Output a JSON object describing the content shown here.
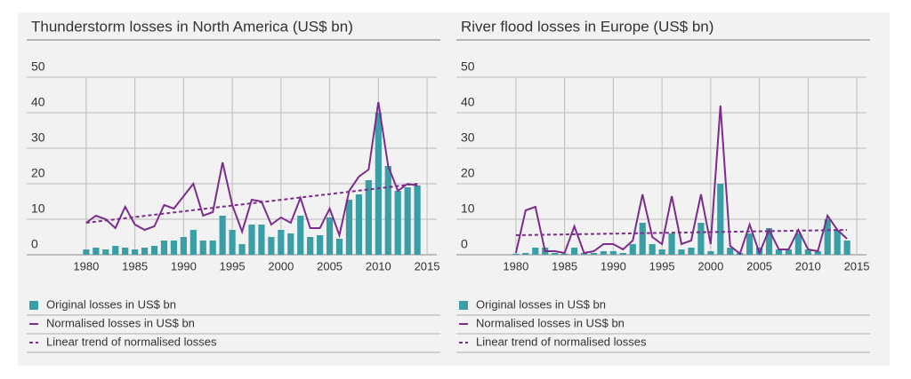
{
  "chart_data": [
    {
      "type": "combo",
      "title": "Thunderstorm losses in North America (US$ bn)",
      "x": [
        1980,
        1981,
        1982,
        1983,
        1984,
        1985,
        1986,
        1987,
        1988,
        1989,
        1990,
        1991,
        1992,
        1993,
        1994,
        1995,
        1996,
        1997,
        1998,
        1999,
        2000,
        2001,
        2002,
        2003,
        2004,
        2005,
        2006,
        2007,
        2008,
        2009,
        2010,
        2011,
        2012,
        2013,
        2014
      ],
      "xlim": [
        1978,
        2016
      ],
      "xticks": [
        1980,
        1985,
        1990,
        1995,
        2000,
        2005,
        2010,
        2015
      ],
      "ylim": [
        0,
        50
      ],
      "yticks": [
        0,
        10,
        20,
        30,
        40,
        50
      ],
      "grid": true,
      "series": [
        {
          "name": "Original losses in US$ bn",
          "style": "bar",
          "color": "#3a9ea6",
          "values": [
            1.5,
            2,
            1.5,
            2.5,
            2,
            1.5,
            2,
            2.5,
            4,
            4,
            5,
            7,
            4,
            4,
            11,
            7,
            3,
            8.5,
            8.5,
            5,
            7,
            6,
            11,
            5,
            5.5,
            10.5,
            4.5,
            15.5,
            17,
            21,
            40,
            25,
            18,
            19,
            19.5
          ]
        },
        {
          "name": "Normalised losses in US$ bn",
          "style": "line",
          "color": "#7b2c8c",
          "values": [
            9,
            11,
            10,
            7.5,
            13.5,
            8.5,
            7,
            8,
            14,
            13,
            16.5,
            20,
            11,
            12,
            26,
            14,
            6.5,
            15.5,
            15,
            8.5,
            10.5,
            9,
            16,
            7.5,
            7.5,
            13,
            5.5,
            18,
            22,
            24,
            43,
            25,
            18,
            20,
            19.5
          ]
        },
        {
          "name": "Linear trend of normalised losses",
          "style": "dashed",
          "color": "#7b2c8c",
          "x": [
            1980,
            2014
          ],
          "values": [
            9,
            20
          ]
        }
      ]
    },
    {
      "type": "combo",
      "title": "River flood losses in Europe (US$ bn)",
      "x": [
        1980,
        1981,
        1982,
        1983,
        1984,
        1985,
        1986,
        1987,
        1988,
        1989,
        1990,
        1991,
        1992,
        1993,
        1994,
        1995,
        1996,
        1997,
        1998,
        1999,
        2000,
        2001,
        2002,
        2003,
        2004,
        2005,
        2006,
        2007,
        2008,
        2009,
        2010,
        2011,
        2012,
        2013,
        2014
      ],
      "xlim": [
        1978,
        2016
      ],
      "xticks": [
        1980,
        1985,
        1990,
        1995,
        2000,
        2005,
        2010,
        2015
      ],
      "ylim": [
        0,
        50
      ],
      "yticks": [
        0,
        10,
        20,
        30,
        40,
        50
      ],
      "grid": true,
      "series": [
        {
          "name": "Original losses in US$ bn",
          "style": "bar",
          "color": "#3a9ea6",
          "values": [
            0.3,
            0.5,
            2,
            2,
            0.5,
            0.3,
            2,
            0.5,
            0.5,
            1,
            1,
            0.5,
            3,
            9,
            3,
            1.5,
            6,
            1.5,
            2,
            9,
            1,
            20,
            2,
            0.5,
            6,
            2,
            7.5,
            1.5,
            1.5,
            6,
            1.5,
            1,
            10,
            7,
            4
          ]
        },
        {
          "name": "Normalised losses in US$ bn",
          "style": "line",
          "color": "#7b2c8c",
          "values": [
            0.5,
            12.5,
            13.5,
            1,
            1,
            0.5,
            8,
            0.5,
            1,
            3,
            3,
            1.5,
            4,
            17,
            5,
            3,
            16.5,
            3,
            4,
            17,
            3,
            42,
            2.5,
            0.3,
            8.5,
            0.5,
            7,
            1.5,
            1.5,
            7,
            1.5,
            1,
            11,
            7,
            4.5
          ]
        },
        {
          "name": "Linear trend of normalised losses",
          "style": "dashed",
          "color": "#7b2c8c",
          "x": [
            1980,
            2014
          ],
          "values": [
            5.5,
            7
          ]
        }
      ]
    }
  ]
}
